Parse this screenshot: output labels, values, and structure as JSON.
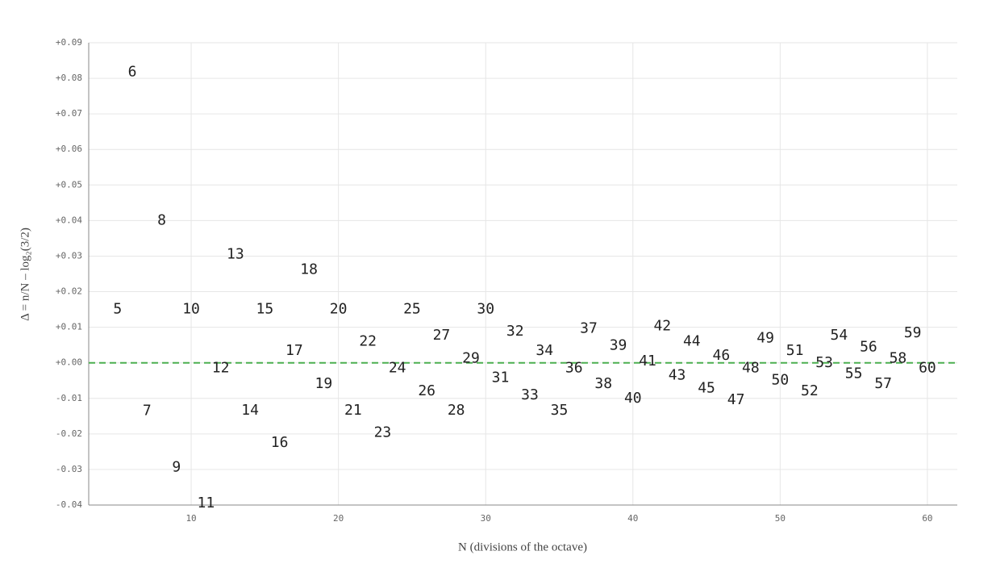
{
  "chart_data": {
    "type": "scatter",
    "x_label": "N (divisions of the octave)",
    "y_label": "Δ = n/N – log₂(3/2)",
    "x": [
      5,
      6,
      7,
      8,
      9,
      10,
      11,
      12,
      13,
      14,
      15,
      16,
      17,
      18,
      19,
      20,
      21,
      22,
      23,
      24,
      25,
      26,
      27,
      28,
      29,
      30,
      31,
      32,
      33,
      34,
      35,
      36,
      37,
      38,
      39,
      40,
      41,
      42,
      43,
      44,
      45,
      46,
      47,
      48,
      49,
      50,
      51,
      52,
      53,
      54,
      55,
      56,
      57,
      58,
      59,
      60
    ],
    "values": [
      0.015,
      0.0817,
      -0.0136,
      0.04,
      -0.0294,
      0.015,
      -0.0395,
      -0.0016,
      0.0304,
      -0.0135,
      0.015,
      -0.0225,
      0.0033,
      0.0261,
      -0.006,
      0.015,
      -0.0135,
      0.0059,
      -0.0197,
      -0.0016,
      0.015,
      -0.008,
      0.0076,
      -0.0135,
      0.0012,
      0.015,
      -0.0043,
      0.0088,
      -0.0092,
      0.0033,
      -0.0135,
      -0.0016,
      0.0096,
      -0.006,
      0.0048,
      -0.01,
      0.0004,
      0.0103,
      -0.0036,
      0.0059,
      -0.0072,
      0.002,
      -0.0105,
      -0.0016,
      0.0069,
      -0.005,
      0.0033,
      -0.008,
      -0.0001,
      0.0076,
      -0.0031,
      0.0043,
      -0.006,
      0.0012,
      0.0083,
      -0.0016
    ],
    "color": "#222222",
    "xlim": [
      3.04,
      62.03
    ],
    "xticks": [
      10,
      20,
      30,
      40,
      50,
      60
    ],
    "ylim": [
      -0.04,
      0.09
    ],
    "yticks": [
      {
        "value": -0.04,
        "label": "-0.04"
      },
      {
        "value": -0.03,
        "label": "-0.03"
      },
      {
        "value": -0.02,
        "label": "-0.02"
      },
      {
        "value": -0.01,
        "label": "-0.01"
      },
      {
        "value": 0,
        "label": "+0.00"
      },
      {
        "value": 0.01,
        "label": "+0.01"
      },
      {
        "value": 0.02,
        "label": "+0.02"
      },
      {
        "value": 0.03,
        "label": "+0.03"
      },
      {
        "value": 0.04,
        "label": "+0.04"
      },
      {
        "value": 0.05,
        "label": "+0.05"
      },
      {
        "value": 0.06,
        "label": "+0.06"
      },
      {
        "value": 0.07,
        "label": "+0.07"
      },
      {
        "value": 0.08,
        "label": "+0.08"
      },
      {
        "value": 0.09,
        "label": "+0.09"
      }
    ],
    "grid": true,
    "reference_line": {
      "value": 0,
      "color": "#4caf50"
    }
  }
}
